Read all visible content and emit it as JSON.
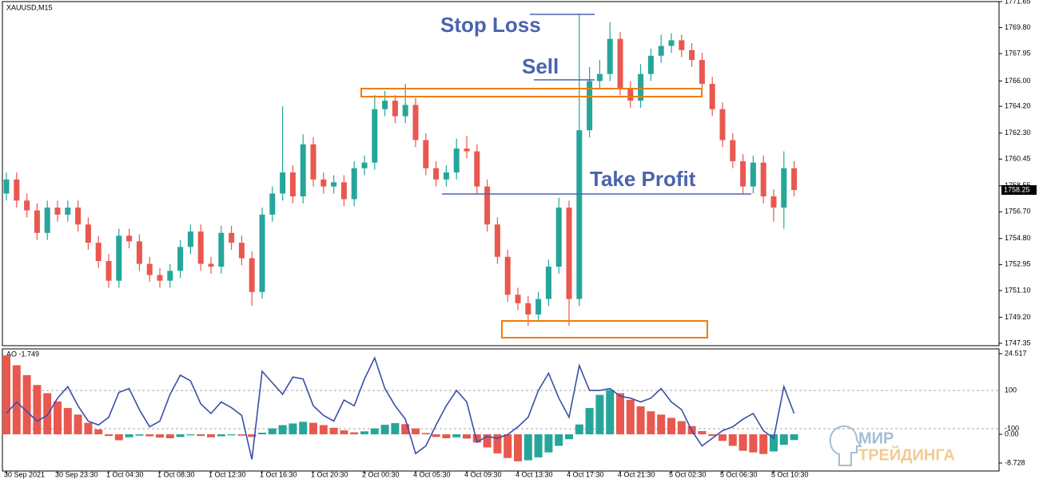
{
  "chart_data": [
    {
      "type": "candlestick",
      "title": "XAUUSD,M15",
      "categories": [
        "30 Sep 2021",
        null,
        null,
        null,
        null,
        "30 Sep 23:30",
        null,
        null,
        null,
        null,
        "1 Oct 04:30",
        null,
        null,
        null,
        null,
        "1 Oct 08:30",
        null,
        null,
        null,
        null,
        "1 Oct 12:30",
        null,
        null,
        null,
        null,
        "1 Oct 16:30",
        null,
        null,
        null,
        null,
        "1 Oct 20:30",
        null,
        null,
        null,
        null,
        "2 Oct 00:30",
        null,
        null,
        null,
        null,
        "4 Oct 05:30",
        null,
        null,
        null,
        null,
        "4 Oct 09:30",
        null,
        null,
        null,
        null,
        "4 Oct 13:30",
        null,
        null,
        null,
        null,
        "4 Oct 17:30",
        null,
        null,
        null,
        null,
        "4 Oct 21:30",
        null,
        null,
        null,
        null,
        "5 Oct 02:30",
        null,
        null,
        null,
        null,
        "5 Oct 06:30",
        null,
        null,
        null,
        null,
        "5 Oct 10:30",
        null,
        null
      ],
      "open": [
        1758.0,
        1759.0,
        1757.5,
        1756.8,
        1755.2,
        1757.0,
        1756.5,
        1757.0,
        1755.8,
        1754.5,
        1753.2,
        1751.8,
        1755.0,
        1754.6,
        1753.0,
        1752.2,
        1751.8,
        1752.5,
        1754.2,
        1755.3,
        1753.0,
        1752.8,
        1755.2,
        1754.5,
        1753.4,
        1751.0,
        1756.5,
        1758.0,
        1759.5,
        1757.8,
        1761.5,
        1759.0,
        1758.5,
        1758.8,
        1757.6,
        1759.8,
        1760.2,
        1764.0,
        1764.6,
        1763.5,
        1764.3,
        1761.8,
        1759.8,
        1759.0,
        1759.5,
        1761.2,
        1761.0,
        1758.5,
        1755.8,
        1753.5,
        1750.8,
        1750.2,
        1749.4,
        1750.5,
        1752.8,
        1757.0,
        1750.5,
        1762.5,
        1766.0,
        1766.5,
        1769.0,
        1765.5,
        1764.6,
        1766.5,
        1767.8,
        1768.5,
        1768.9,
        1768.2,
        1767.5,
        1765.8,
        1764.0,
        1761.8,
        1760.3,
        1758.5,
        1760.2,
        1757.8,
        1757.0,
        1759.8
      ],
      "high": [
        1759.5,
        1759.5,
        1758.0,
        1757.3,
        1757.5,
        1757.5,
        1757.5,
        1757.5,
        1756.3,
        1755.0,
        1753.7,
        1755.5,
        1755.5,
        1755.1,
        1753.5,
        1752.7,
        1753.0,
        1754.7,
        1755.8,
        1755.8,
        1753.5,
        1755.7,
        1755.7,
        1755.0,
        1753.9,
        1757.0,
        1758.5,
        1764.2,
        1760.0,
        1762.2,
        1762.0,
        1759.5,
        1759.3,
        1759.3,
        1760.3,
        1760.7,
        1765.0,
        1765.3,
        1765.0,
        1765.8,
        1764.8,
        1762.3,
        1760.3,
        1760.0,
        1761.9,
        1762.1,
        1761.5,
        1759.0,
        1756.3,
        1754.0,
        1751.3,
        1750.7,
        1751.0,
        1753.3,
        1757.7,
        1757.5,
        1770.8,
        1767.0,
        1767.5,
        1770.2,
        1769.5,
        1766.0,
        1767.2,
        1768.3,
        1769.3,
        1769.4,
        1769.3,
        1768.7,
        1768.0,
        1766.3,
        1764.5,
        1762.3,
        1760.8,
        1760.7,
        1760.7,
        1758.3,
        1761.0,
        1760.3
      ],
      "low": [
        1757.5,
        1757.0,
        1756.3,
        1754.7,
        1754.7,
        1756.0,
        1756.0,
        1755.3,
        1754.0,
        1752.7,
        1751.3,
        1751.3,
        1754.1,
        1752.5,
        1751.7,
        1751.3,
        1751.3,
        1752.0,
        1753.7,
        1752.5,
        1752.3,
        1752.3,
        1754.0,
        1752.9,
        1750.0,
        1750.5,
        1756.0,
        1757.5,
        1757.3,
        1757.3,
        1758.5,
        1758.0,
        1758.0,
        1757.1,
        1757.1,
        1759.3,
        1759.7,
        1763.5,
        1763.0,
        1763.0,
        1761.3,
        1759.3,
        1758.5,
        1758.5,
        1759.0,
        1760.5,
        1758.0,
        1755.3,
        1753.0,
        1750.3,
        1749.7,
        1748.6,
        1748.9,
        1750.0,
        1752.3,
        1748.6,
        1750.0,
        1762.0,
        1765.5,
        1766.0,
        1765.0,
        1764.1,
        1764.1,
        1766.0,
        1767.3,
        1768.0,
        1767.7,
        1767.0,
        1765.3,
        1763.5,
        1761.3,
        1759.8,
        1758.0,
        1758.0,
        1757.3,
        1756.0,
        1755.5,
        1757.8
      ],
      "close": [
        1759.0,
        1757.5,
        1756.8,
        1755.2,
        1757.0,
        1756.5,
        1757.0,
        1755.8,
        1754.5,
        1753.2,
        1751.8,
        1755.0,
        1754.6,
        1753.0,
        1752.2,
        1751.8,
        1752.5,
        1754.2,
        1755.3,
        1753.0,
        1752.8,
        1755.2,
        1754.5,
        1753.4,
        1751.0,
        1756.5,
        1758.0,
        1759.5,
        1757.8,
        1761.5,
        1759.0,
        1758.5,
        1758.8,
        1757.6,
        1759.8,
        1760.2,
        1764.0,
        1764.6,
        1763.5,
        1764.3,
        1761.8,
        1759.8,
        1759.0,
        1759.5,
        1761.2,
        1761.0,
        1758.5,
        1755.8,
        1753.5,
        1750.8,
        1750.2,
        1749.4,
        1750.5,
        1752.8,
        1757.0,
        1750.5,
        1762.5,
        1766.0,
        1766.5,
        1769.0,
        1765.5,
        1764.6,
        1766.5,
        1767.8,
        1768.5,
        1768.9,
        1768.2,
        1767.5,
        1765.8,
        1764.0,
        1761.8,
        1760.3,
        1758.5,
        1760.2,
        1757.8,
        1757.0,
        1759.8,
        1758.25
      ],
      "up_color": "#26a69a",
      "down_color": "#e8584f",
      "ylim": [
        1747.35,
        1771.65
      ],
      "yticks": [
        1771.65,
        {
          "value": 1769.8,
          "label": "1769.80"
        },
        1767.95,
        {
          "value": 1766,
          "label": "1766.00"
        },
        {
          "value": 1764.2,
          "label": "1764.20"
        },
        {
          "value": 1762.3,
          "label": "1762.30"
        },
        1760.45,
        1758.55,
        {
          "value": 1756.7,
          "label": "1756.70"
        },
        {
          "value": 1754.8,
          "label": "1754.80"
        },
        1752.95,
        {
          "value": 1751.1,
          "label": "1751.10"
        },
        {
          "value": 1749.2,
          "label": "1749.20"
        },
        1747.35
      ],
      "current_price": 1758.25,
      "annotations": {
        "stop_loss": "Stop Loss",
        "sell": "Sell",
        "take_profit": "Take Profit"
      }
    },
    {
      "type": "combo",
      "title": "AO -1.749",
      "series": [
        {
          "name": "AO",
          "up_color": "#26a69a",
          "down_color": "#e8584f",
          "values": [
            24,
            21,
            18,
            15,
            12.5,
            10,
            8,
            6,
            3.5,
            1.5,
            -0.5,
            -1.8,
            -0.9,
            -0.4,
            -0.6,
            -1.0,
            -1.2,
            -0.8,
            -0.3,
            -0.5,
            -0.9,
            -0.6,
            -0.3,
            -0.4,
            -0.8,
            0.5,
            1.8,
            2.8,
            3.3,
            3.8,
            3.5,
            2.8,
            2.0,
            1.2,
            0.6,
            0.9,
            1.8,
            2.9,
            3.4,
            3.1,
            1.8,
            0.4,
            -0.8,
            -1.2,
            -0.9,
            -1.3,
            -2.5,
            -4.0,
            -5.8,
            -7.2,
            -8.2,
            -7.9,
            -7.0,
            -5.5,
            -3.5,
            -1.5,
            3.0,
            8.0,
            12.0,
            13.5,
            12.5,
            10.5,
            8.5,
            7.0,
            6.0,
            5.0,
            4.0,
            2.5,
            1.0,
            -0.5,
            -2.0,
            -3.5,
            -5.0,
            -5.5,
            -6.0,
            -5.2,
            -3.2,
            -1.749
          ]
        },
        {
          "color": "#3a4fa6",
          "axis": "y2",
          "values": [
            -20,
            40,
            -10,
            -60,
            -30,
            60,
            120,
            20,
            -60,
            -80,
            -40,
            90,
            110,
            0,
            -90,
            -60,
            80,
            180,
            150,
            30,
            -20,
            40,
            10,
            -30,
            -260,
            200,
            140,
            80,
            170,
            160,
            20,
            -30,
            -60,
            50,
            20,
            160,
            270,
            110,
            20,
            -50,
            -230,
            -190,
            -80,
            20,
            100,
            40,
            -170,
            -140,
            -150,
            -130,
            -90,
            -40,
            100,
            190,
            60,
            -40,
            230,
            100,
            100,
            110,
            70,
            60,
            40,
            60,
            110,
            40,
            0,
            -110,
            -190,
            -150,
            -110,
            -90,
            -50,
            -20,
            -110,
            -150,
            120,
            -20
          ]
        }
      ],
      "ylim": [
        -8.728,
        24.517
      ],
      "yticks": [
        24.517,
        {
          "value": 0,
          "label": "0.00"
        },
        -8.728
      ],
      "y2lim": [
        -279,
        292
      ],
      "y2ticks": [
        100,
        -100
      ]
    }
  ],
  "watermark": {
    "line1": "МИР",
    "line2": "ТРЕЙДИНГА"
  }
}
